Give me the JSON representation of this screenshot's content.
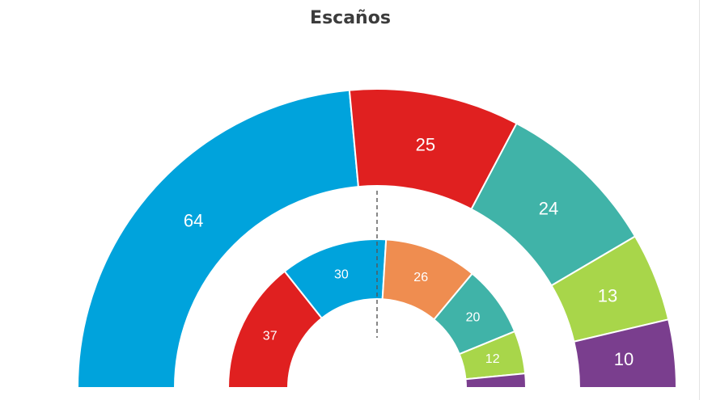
{
  "title": "Escaños",
  "chart_data": {
    "type": "pie",
    "title": "Escaños",
    "form": "half-donut",
    "rings": [
      {
        "name": "",
        "position": "outer",
        "values": [
          64,
          25,
          24,
          13,
          10
        ],
        "labels": [
          "64",
          "25",
          "24",
          "13",
          "10"
        ],
        "colors": [
          "#00a3dc",
          "#e02020",
          "#40b3a8",
          "#a8d64a",
          "#7a3e8e"
        ]
      },
      {
        "name": "",
        "position": "inner",
        "values": [
          37,
          30,
          26,
          20,
          12,
          4
        ],
        "labels": [
          "37",
          "30",
          "26",
          "20",
          "12",
          ""
        ],
        "colors": [
          "#e02020",
          "#00a3dc",
          "#ef8d50",
          "#40b3a8",
          "#a8d64a",
          "#7a3e8e"
        ]
      }
    ],
    "majority_line": true,
    "legend": "none"
  }
}
